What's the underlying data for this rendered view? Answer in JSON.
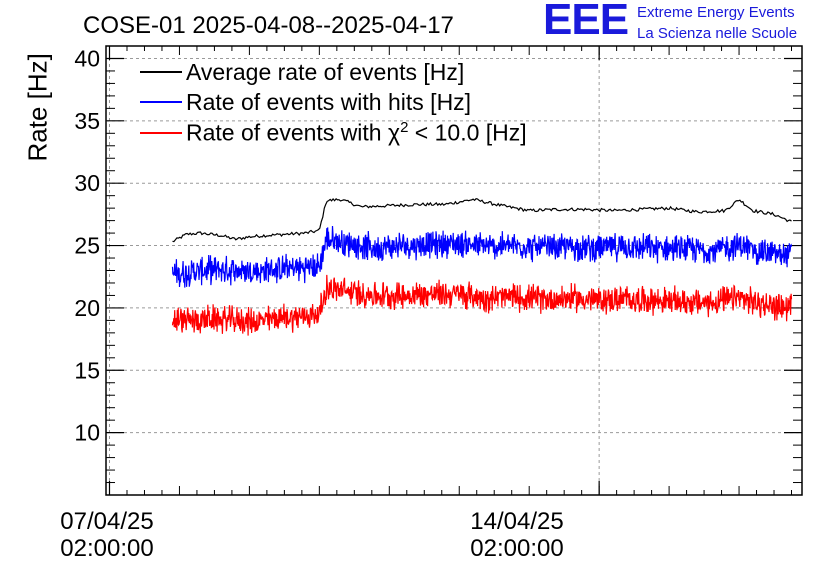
{
  "chart_data": {
    "type": "line",
    "title": "COSE-01 2025-04-08--2025-04-17",
    "ylabel": "Rate [Hz]",
    "xlabel": "",
    "ylim": [
      5,
      41
    ],
    "yticks": [
      10,
      15,
      20,
      25,
      30,
      35,
      40
    ],
    "xlim_days": [
      -0.05,
      9.9
    ],
    "xticks": [
      {
        "day": 0,
        "line1": "07/04/25",
        "line2": "02:00:00"
      },
      {
        "day": 7,
        "line1": "14/04/25",
        "line2": "02:00:00"
      }
    ],
    "grid": true,
    "legend_position": "top-left",
    "series": [
      {
        "name": "Average rate of events [Hz]",
        "legend_parts": [
          "Average rate of events [Hz]"
        ],
        "color": "#000000",
        "x": [
          0.9,
          1.1,
          1.3,
          1.6,
          1.8,
          2.0,
          2.2,
          2.5,
          2.8,
          3.0,
          3.1,
          3.3,
          3.6,
          4.0,
          4.4,
          4.8,
          5.2,
          5.6,
          6.0,
          6.4,
          6.8,
          7.2,
          7.6,
          8.0,
          8.4,
          8.8,
          9.0,
          9.2,
          9.5,
          9.75
        ],
        "y": [
          25.3,
          25.9,
          26.0,
          25.8,
          25.5,
          25.7,
          25.8,
          25.9,
          26.0,
          26.2,
          28.6,
          28.7,
          28.1,
          28.2,
          28.3,
          28.3,
          28.7,
          28.2,
          27.8,
          27.9,
          27.9,
          27.8,
          27.9,
          28.0,
          27.7,
          27.8,
          28.7,
          27.8,
          27.5,
          26.9
        ]
      },
      {
        "name": "Rate of events with hits [Hz]",
        "legend_parts": [
          "Rate of events with hits [Hz]"
        ],
        "color": "#0000ff",
        "x": [
          0.9,
          1.2,
          1.5,
          1.8,
          2.1,
          2.4,
          2.7,
          3.0,
          3.1,
          3.4,
          3.8,
          4.2,
          4.6,
          5.0,
          5.4,
          5.8,
          6.2,
          6.6,
          7.0,
          7.4,
          7.8,
          8.2,
          8.6,
          9.0,
          9.3,
          9.75
        ],
        "y": [
          22.7,
          22.9,
          23.1,
          23.0,
          22.9,
          23.1,
          23.2,
          23.3,
          25.5,
          25.2,
          24.8,
          25.0,
          25.1,
          25.2,
          24.9,
          25.0,
          24.8,
          24.9,
          24.8,
          24.9,
          24.8,
          24.7,
          24.6,
          25.0,
          24.5,
          24.2
        ],
        "noise": 1.3
      },
      {
        "name": "Rate of events with χ² < 10.0 [Hz]",
        "legend_parts": [
          "Rate of events with χ",
          "2",
          " < 10.0 [Hz]"
        ],
        "color": "#ff0000",
        "x": [
          0.9,
          1.2,
          1.5,
          1.8,
          2.1,
          2.4,
          2.7,
          3.0,
          3.1,
          3.4,
          3.8,
          4.2,
          4.6,
          5.0,
          5.4,
          5.8,
          6.2,
          6.6,
          7.0,
          7.4,
          7.8,
          8.2,
          8.6,
          9.0,
          9.3,
          9.75
        ],
        "y": [
          19.0,
          19.0,
          19.1,
          19.0,
          18.9,
          19.2,
          19.3,
          19.5,
          21.6,
          21.3,
          21.0,
          21.0,
          21.1,
          21.1,
          20.8,
          20.9,
          20.7,
          20.8,
          20.6,
          20.7,
          20.6,
          20.5,
          20.4,
          20.8,
          20.3,
          20.0
        ],
        "noise": 1.3
      }
    ]
  },
  "logo": {
    "mark": "EEE",
    "line1": "Extreme Energy Events",
    "line2": "La Scienza nelle Scuole",
    "color": "#1a1adb"
  }
}
